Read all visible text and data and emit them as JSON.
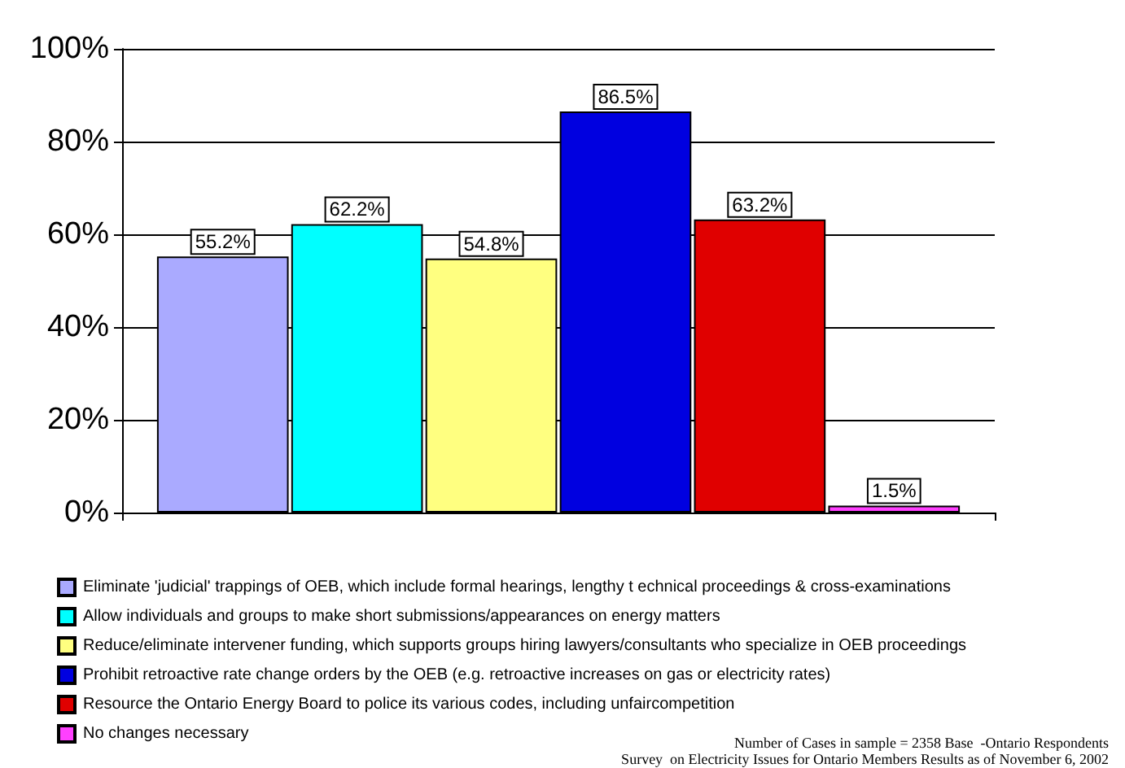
{
  "chart_data": {
    "type": "bar",
    "categories": [
      null
    ],
    "series": [
      {
        "name": "Eliminate 'judicial' trappings of OEB, which include formal hearings, lengthy t echnical proceedings & cross-examinations",
        "color": "#aaaaff",
        "values": [
          55.2
        ],
        "value_labels": [
          "55.2%"
        ]
      },
      {
        "name": "Allow individuals and groups to make short submissions/appearances on energy matters",
        "color": "#00ffff",
        "values": [
          62.2
        ],
        "value_labels": [
          "62.2%"
        ]
      },
      {
        "name": "Reduce/eliminate intervener funding, which supports groups hiring lawyers/consultants who specialize in OEB proceedings",
        "color": "#ffff80",
        "values": [
          54.8
        ],
        "value_labels": [
          "54.8%"
        ]
      },
      {
        "name": "Prohibit retroactive rate change orders by the OEB (e.g. retroactive increases on gas or electricity rates)",
        "color": "#0000e0",
        "values": [
          86.5
        ],
        "value_labels": [
          "86.5%"
        ]
      },
      {
        "name": "Resource the Ontario Energy Board to police its various codes, including unfaircompetition",
        "color": "#e00000",
        "values": [
          63.2
        ],
        "value_labels": [
          "63.2%"
        ]
      },
      {
        "name": "No changes necessary",
        "color": "#ff40ff",
        "values": [
          1.5
        ],
        "value_labels": [
          "1.5%"
        ]
      }
    ],
    "ylim": [
      0,
      100
    ],
    "yticks": [
      {
        "value": 0,
        "label": "0%"
      },
      {
        "value": 20,
        "label": "20%"
      },
      {
        "value": 40,
        "label": "40%"
      },
      {
        "value": 60,
        "label": "60%"
      },
      {
        "value": 80,
        "label": "80%"
      },
      {
        "value": 100,
        "label": "100%"
      }
    ],
    "grid": "y",
    "legend": "bottom left",
    "annotations": [
      "Number of Cases in sample = 2358 Base  -Ontario Respondents",
      "Survey  on Electricity Issues for Ontario Members Results as of November 6, 2002"
    ]
  }
}
